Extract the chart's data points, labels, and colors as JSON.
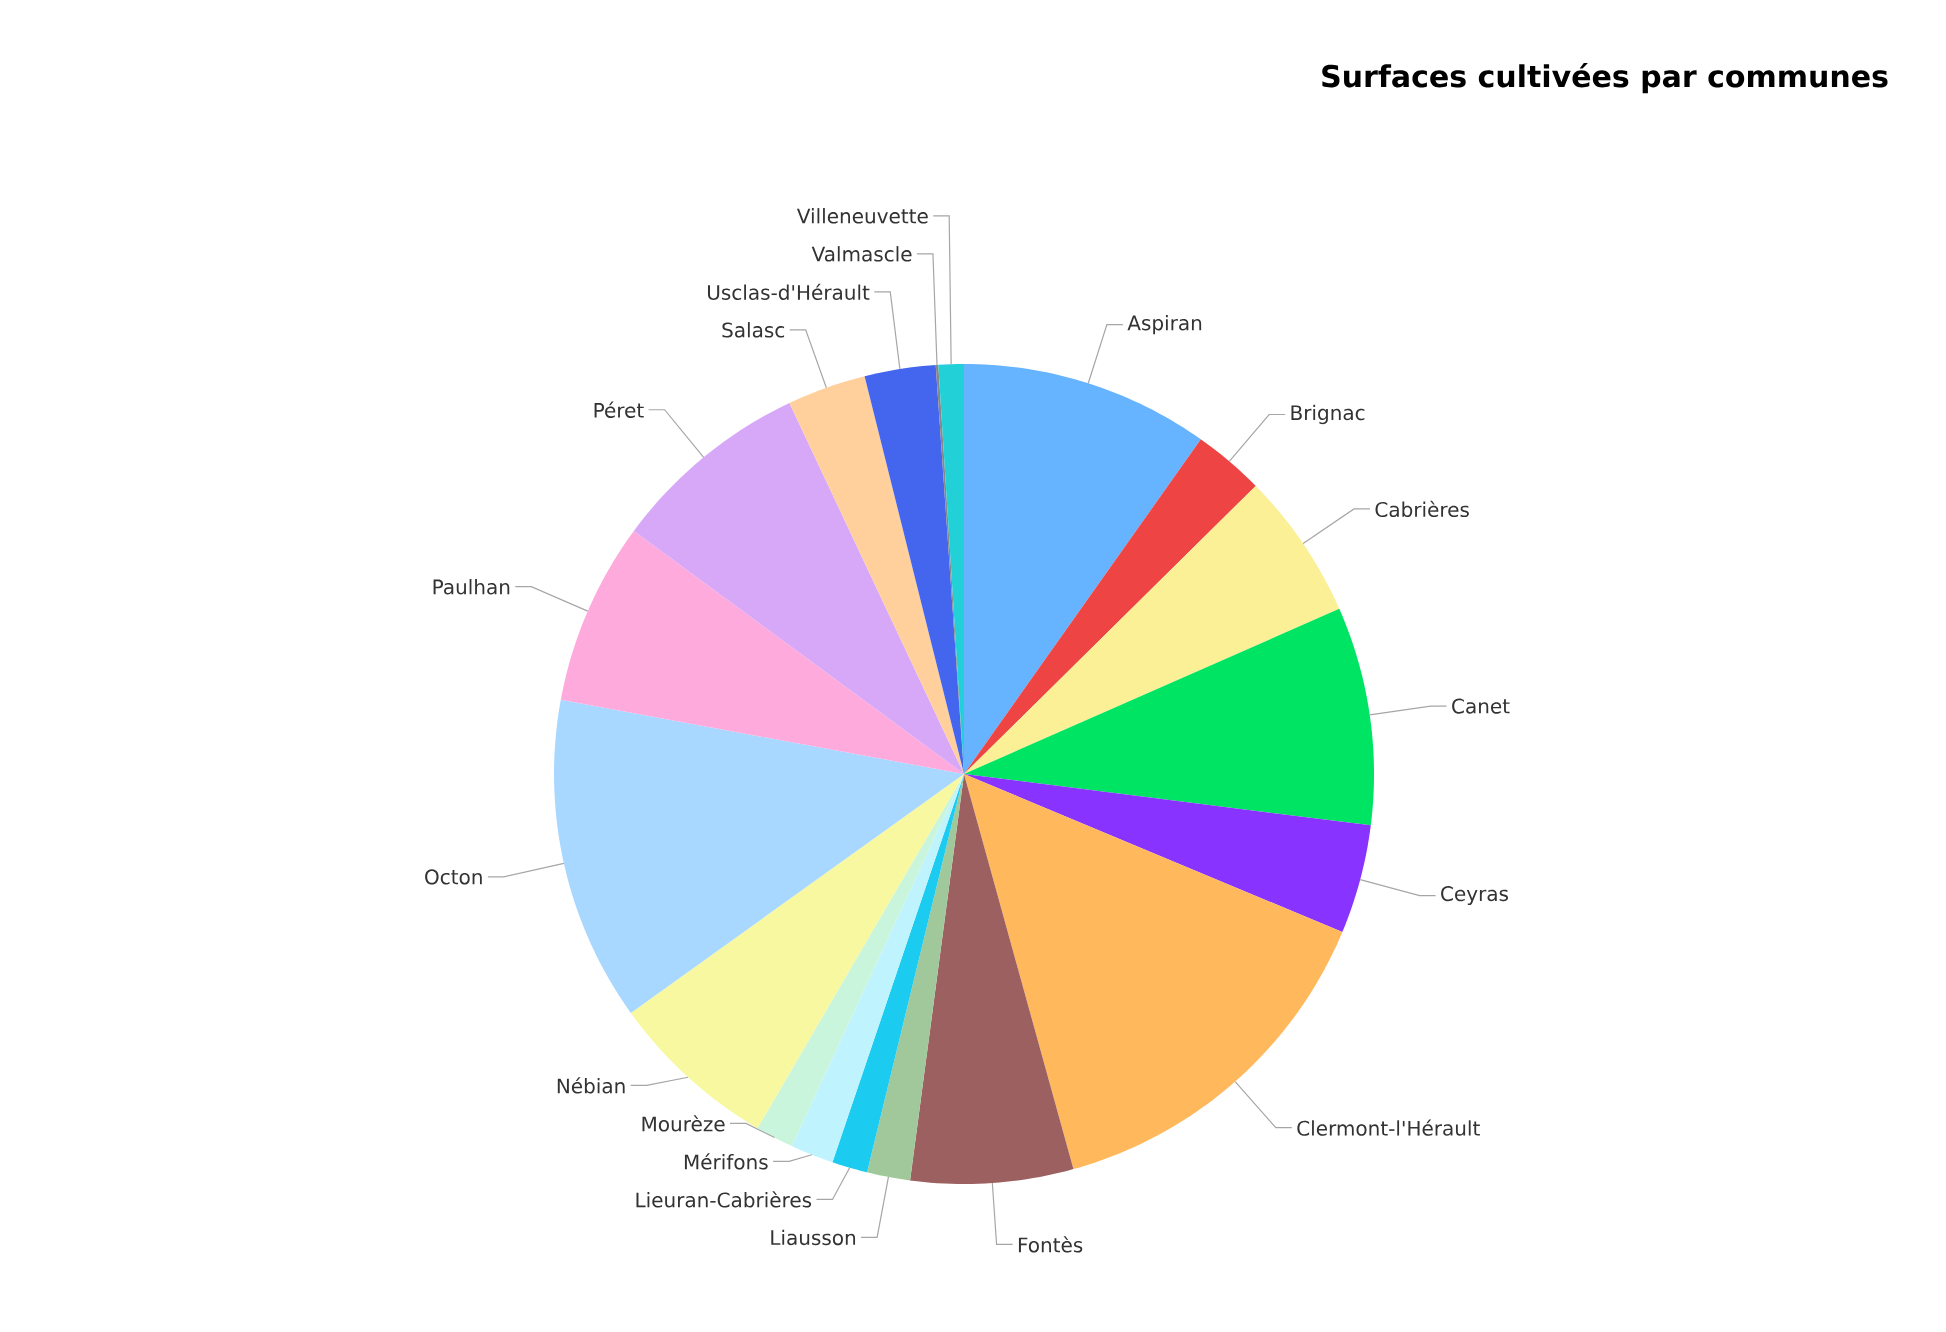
{
  "chart_data": {
    "type": "pie",
    "title": "Surfaces cultivées par communes",
    "categories": [
      "Aspiran",
      "Brignac",
      "Cabrières",
      "Canet",
      "Ceyras",
      "Clermont-l'Hérault",
      "Fontès",
      "Liausson",
      "Lieuran-Cabrières",
      "Mérifons",
      "Mourèze",
      "Nébian",
      "Octon",
      "Paulhan",
      "Péret",
      "Salasc",
      "Usclas-d'Hérault",
      "Valmascle",
      "Villeneuvette"
    ],
    "values": [
      9.8,
      2.8,
      5.8,
      8.6,
      4.3,
      14.4,
      6.4,
      1.7,
      1.4,
      1.7,
      1.5,
      6.7,
      12.8,
      7.2,
      7.9,
      3.1,
      2.8,
      0.1,
      1.0
    ],
    "colors": [
      "#66b3ff",
      "#ee4444",
      "#fbf096",
      "#00e464",
      "#8833ff",
      "#ffb85c",
      "#9c6060",
      "#a0c89a",
      "#1ccbf0",
      "#bff4ff",
      "#c8f5dc",
      "#f8f8a0",
      "#a8d8ff",
      "#ffaadd",
      "#d8a8f8",
      "#ffd09c",
      "#4466ee",
      "#888888",
      "#22d0d8"
    ]
  }
}
